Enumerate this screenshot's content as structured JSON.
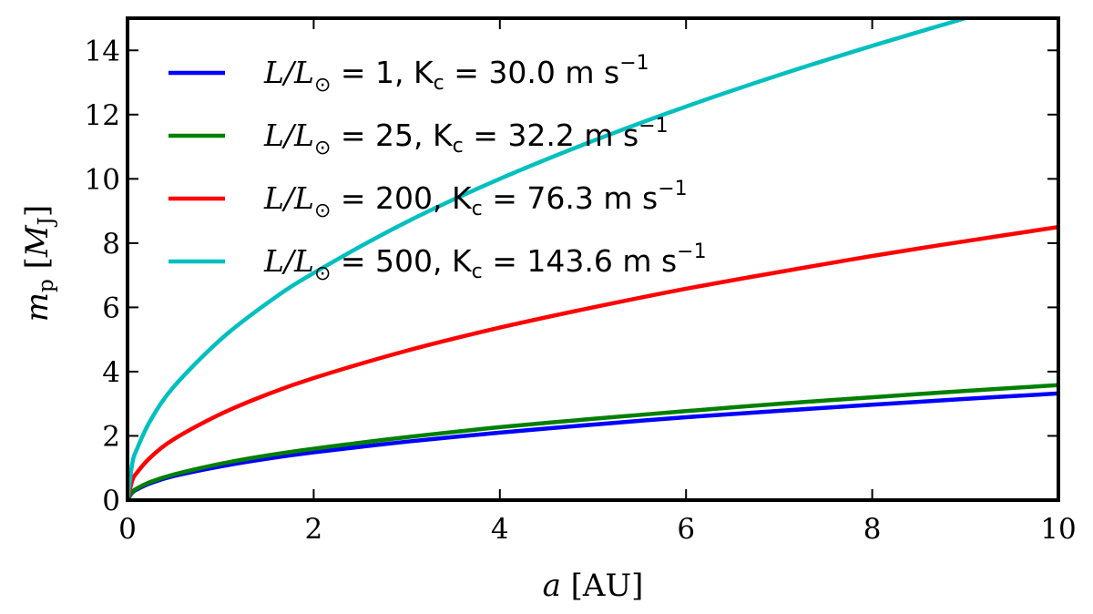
{
  "chart_data": {
    "type": "line",
    "xlabel": "a [AU]",
    "ylabel": "m_p [M_J]",
    "xlim": [
      0,
      10
    ],
    "ylim": [
      0,
      15
    ],
    "x_ticks": [
      "0",
      "2",
      "4",
      "6",
      "8",
      "10"
    ],
    "y_ticks": [
      "0",
      "2",
      "4",
      "6",
      "8",
      "10",
      "12",
      "14"
    ],
    "grid": false,
    "legend_position": "top-left",
    "series": [
      {
        "name": "L/L⊙ = 1, Kc = 30.0 m s−1",
        "color": "#0000ff",
        "x": [
          0,
          0.05,
          0.1,
          0.25,
          0.5,
          1,
          1.5,
          2,
          3,
          4,
          5,
          6,
          7,
          8,
          9,
          10
        ],
        "y": [
          0,
          0.23,
          0.33,
          0.53,
          0.75,
          1.05,
          1.29,
          1.49,
          1.82,
          2.1,
          2.35,
          2.58,
          2.78,
          2.97,
          3.15,
          3.32
        ]
      },
      {
        "name": "L/L⊙ = 25, Kc = 32.2 m s−1",
        "color": "#008000",
        "x": [
          0,
          0.05,
          0.1,
          0.25,
          0.5,
          1,
          1.5,
          2,
          3,
          4,
          5,
          6,
          7,
          8,
          9,
          10
        ],
        "y": [
          0,
          0.25,
          0.36,
          0.57,
          0.8,
          1.13,
          1.39,
          1.6,
          1.96,
          2.27,
          2.53,
          2.77,
          3.0,
          3.2,
          3.4,
          3.58
        ]
      },
      {
        "name": "L/L⊙ = 200, Kc = 76.3 m s−1",
        "color": "#ff0000",
        "x": [
          0,
          0.05,
          0.1,
          0.25,
          0.5,
          1,
          1.5,
          2,
          3,
          4,
          5,
          6,
          7,
          8,
          9,
          10
        ],
        "y": [
          0,
          0.6,
          0.85,
          1.34,
          1.9,
          2.68,
          3.29,
          3.8,
          4.65,
          5.37,
          6.0,
          6.58,
          7.1,
          7.6,
          8.06,
          8.5
        ]
      },
      {
        "name": "L/L⊙ = 500, Kc = 143.6 m s−1",
        "color": "#00bfbf",
        "x": [
          0,
          0.05,
          0.1,
          0.25,
          0.5,
          1,
          1.5,
          2,
          3,
          4,
          5,
          6,
          7,
          8,
          9
        ],
        "y": [
          0,
          1.12,
          1.58,
          2.5,
          3.54,
          5.0,
          6.13,
          7.07,
          8.66,
          10.0,
          11.18,
          12.25,
          13.23,
          14.14,
          15.0
        ]
      }
    ],
    "legend": [
      {
        "prefix": "L/L",
        "sub": "⊙",
        "mid": " = 1, K",
        "sub2": "c",
        "rest": " = 30.0 m s",
        "sup": "−1"
      },
      {
        "prefix": "L/L",
        "sub": "⊙",
        "mid": " = 25, K",
        "sub2": "c",
        "rest": " = 32.2 m s",
        "sup": "−1"
      },
      {
        "prefix": "L/L",
        "sub": "⊙",
        "mid": " = 200, K",
        "sub2": "c",
        "rest": " = 76.3 m s",
        "sup": "−1"
      },
      {
        "prefix": "L/L",
        "sub": "⊙",
        "mid": " = 500, K",
        "sub2": "c",
        "rest": " = 143.6 m s",
        "sup": "−1"
      }
    ],
    "axis_text": {
      "x_var": "a",
      "x_unit": " [AU]",
      "y_var": "m",
      "y_sub": "p",
      "y_unit_open": " [",
      "y_unit_var": "M",
      "y_unit_sub": "J",
      "y_unit_close": "]"
    }
  }
}
